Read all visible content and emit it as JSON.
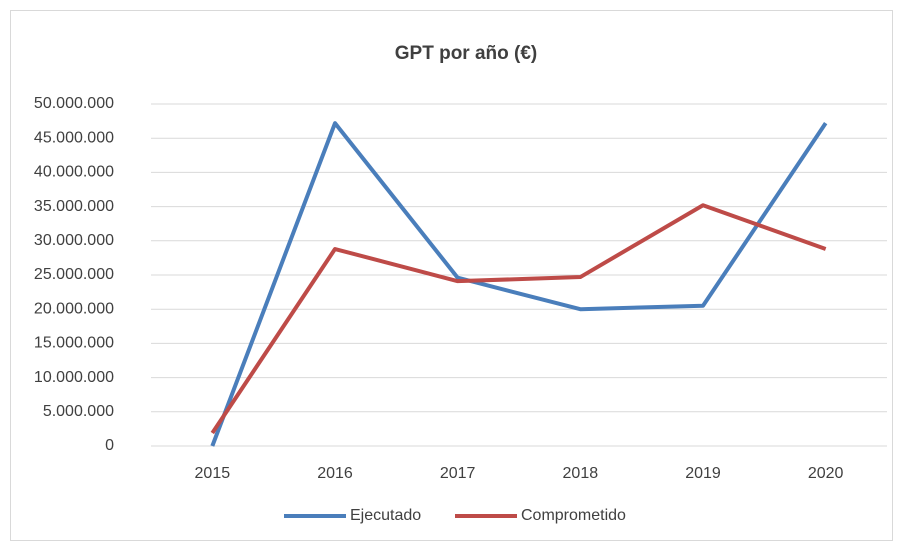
{
  "chart_data": {
    "type": "line",
    "title": "GPT por año (€)",
    "categories": [
      "2015",
      "2016",
      "2017",
      "2018",
      "2019",
      "2020"
    ],
    "series": [
      {
        "name": "Ejecutado",
        "color": "#4a7ebb",
        "values": [
          0,
          47200000,
          24600000,
          20000000,
          20500000,
          47200000
        ]
      },
      {
        "name": "Comprometido",
        "color": "#be4b48",
        "values": [
          1900000,
          28800000,
          24100000,
          24700000,
          35200000,
          28800000
        ]
      }
    ],
    "ylim": [
      0,
      50000000
    ],
    "yticks": [
      0,
      {
        "value": 5000000,
        "label": "5.000.000"
      },
      {
        "value": 10000000,
        "label": "10.000.000"
      },
      {
        "value": 15000000,
        "label": "15.000.000"
      },
      {
        "value": 20000000,
        "label": "20.000.000"
      },
      {
        "value": 25000000,
        "label": "25.000.000"
      },
      {
        "value": 30000000,
        "label": "30.000.000"
      },
      {
        "value": 35000000,
        "label": "35.000.000"
      },
      {
        "value": 40000000,
        "label": "40.000.000"
      },
      {
        "value": 45000000,
        "label": "45.000.000"
      },
      {
        "value": 50000000,
        "label": "50.000.000"
      }
    ],
    "grid": true,
    "legend": "bottom"
  }
}
